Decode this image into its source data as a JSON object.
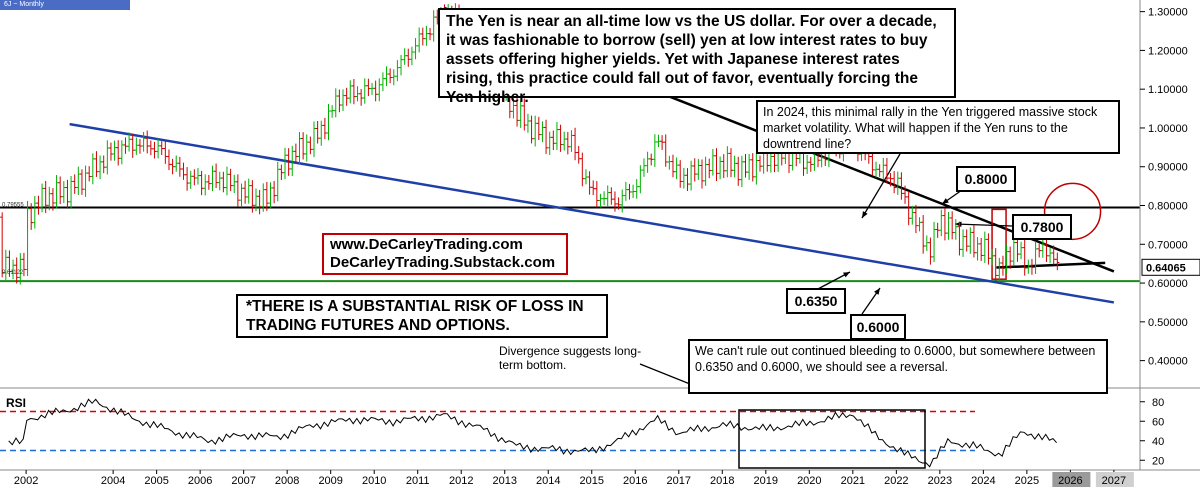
{
  "header": {
    "symbol": "6J ~ Monthly"
  },
  "annotations": {
    "main": "The Yen is near an all-time low vs the US dollar. For over a decade, it was fashionable to borrow (sell) yen at low interest rates to buy assets offering higher yields. Yet with Japanese interest rates rising, this practice could fall out of favor, eventually forcing the Yen higher.",
    "rally_2024": "In 2024, this minimal rally in the Yen triggered massive stock market volatility. What will happen if the Yen runs to the downtrend line?",
    "divergence": "Divergence suggests long-term bottom.",
    "bleed": "We can't rule out continued bleeding to 0.6000, but somewhere between 0.6350 and 0.6000, we should see a reversal.",
    "risk": "*THERE IS A SUBSTANTIAL RISK OF LOSS IN TRADING FUTURES AND OPTIONS.",
    "website1": "www.DeCarleyTrading.com",
    "website2": "DeCarleyTrading.Substack.com",
    "level_08": "0.8000",
    "level_078": "0.7800",
    "level_0635": "0.6350",
    "level_06": "0.6000"
  },
  "rsi_label": "RSI",
  "colors": {
    "up": "#00b000",
    "down": "#d00000",
    "downtrend": "#000000",
    "uptrend": "#1f3fa8",
    "support": "#1a8a1a",
    "resistance": "#000000",
    "rsi_upper": "#e00000",
    "rsi_lower": "#1f6fd0",
    "circle": "#c00000"
  },
  "chart_data": {
    "type": "candlestick",
    "title": "",
    "x_ticks": [
      "2002",
      "2004",
      "2005",
      "2006",
      "2007",
      "2008",
      "2009",
      "2010",
      "2011",
      "2012",
      "2013",
      "2014",
      "2015",
      "2016",
      "2017",
      "2018",
      "2019",
      "2020",
      "2021",
      "2022",
      "2023",
      "2024",
      "2025",
      "2026",
      "2027"
    ],
    "y_ticks": [
      "1.30000",
      "1.20000",
      "1.10000",
      "1.00000",
      "0.90000",
      "0.80000",
      "0.70000",
      "0.60000",
      "0.50000",
      "0.40000"
    ],
    "ylim": [
      0.35,
      1.33
    ],
    "price_labels": {
      "last": "0.64065",
      "low_mark": "0.61122",
      "mid_mark": "0.79555"
    },
    "anchors": [
      {
        "t": 2002.0,
        "v": 0.77
      },
      {
        "t": 2002.4,
        "v": 0.82
      },
      {
        "t": 2003.0,
        "v": 0.84
      },
      {
        "t": 2003.6,
        "v": 0.9
      },
      {
        "t": 2004.0,
        "v": 0.94
      },
      {
        "t": 2004.5,
        "v": 0.96
      },
      {
        "t": 2005.0,
        "v": 0.95
      },
      {
        "t": 2005.6,
        "v": 0.88
      },
      {
        "t": 2006.0,
        "v": 0.86
      },
      {
        "t": 2006.5,
        "v": 0.87
      },
      {
        "t": 2007.0,
        "v": 0.83
      },
      {
        "t": 2007.5,
        "v": 0.81
      },
      {
        "t": 2008.0,
        "v": 0.92
      },
      {
        "t": 2008.7,
        "v": 0.98
      },
      {
        "t": 2009.2,
        "v": 1.08
      },
      {
        "t": 2010.0,
        "v": 1.1
      },
      {
        "t": 2010.5,
        "v": 1.15
      },
      {
        "t": 2011.0,
        "v": 1.22
      },
      {
        "t": 2011.6,
        "v": 1.3
      },
      {
        "t": 2012.0,
        "v": 1.27
      },
      {
        "t": 2012.5,
        "v": 1.25
      },
      {
        "t": 2013.0,
        "v": 1.08
      },
      {
        "t": 2013.5,
        "v": 1.01
      },
      {
        "t": 2014.0,
        "v": 0.97
      },
      {
        "t": 2014.5,
        "v": 0.97
      },
      {
        "t": 2015.0,
        "v": 0.83
      },
      {
        "t": 2015.6,
        "v": 0.81
      },
      {
        "t": 2016.0,
        "v": 0.85
      },
      {
        "t": 2016.5,
        "v": 0.97
      },
      {
        "t": 2017.0,
        "v": 0.87
      },
      {
        "t": 2017.5,
        "v": 0.89
      },
      {
        "t": 2018.0,
        "v": 0.91
      },
      {
        "t": 2018.5,
        "v": 0.89
      },
      {
        "t": 2019.0,
        "v": 0.92
      },
      {
        "t": 2019.5,
        "v": 0.93
      },
      {
        "t": 2020.0,
        "v": 0.91
      },
      {
        "t": 2020.5,
        "v": 0.94
      },
      {
        "t": 2021.0,
        "v": 0.96
      },
      {
        "t": 2021.5,
        "v": 0.9
      },
      {
        "t": 2022.0,
        "v": 0.86
      },
      {
        "t": 2022.5,
        "v": 0.74
      },
      {
        "t": 2022.8,
        "v": 0.68
      },
      {
        "t": 2023.0,
        "v": 0.77
      },
      {
        "t": 2023.5,
        "v": 0.71
      },
      {
        "t": 2024.0,
        "v": 0.69
      },
      {
        "t": 2024.4,
        "v": 0.63
      },
      {
        "t": 2024.7,
        "v": 0.7
      },
      {
        "t": 2025.0,
        "v": 0.64
      },
      {
        "t": 2025.4,
        "v": 0.7
      },
      {
        "t": 2025.7,
        "v": 0.64
      }
    ],
    "rsi": {
      "ylim": [
        10,
        90
      ],
      "y_ticks": [
        "80",
        "60",
        "40",
        "20"
      ],
      "upper": 70,
      "lower": 30,
      "anchors": [
        {
          "t": 2002.0,
          "v": 62
        },
        {
          "t": 2003.0,
          "v": 72
        },
        {
          "t": 2003.6,
          "v": 80
        },
        {
          "t": 2004.5,
          "v": 62
        },
        {
          "t": 2005.5,
          "v": 48
        },
        {
          "t": 2006.2,
          "v": 40
        },
        {
          "t": 2007.0,
          "v": 46
        },
        {
          "t": 2007.8,
          "v": 44
        },
        {
          "t": 2008.6,
          "v": 56
        },
        {
          "t": 2009.5,
          "v": 62
        },
        {
          "t": 2010.5,
          "v": 60
        },
        {
          "t": 2011.6,
          "v": 66
        },
        {
          "t": 2012.5,
          "v": 52
        },
        {
          "t": 2013.3,
          "v": 34
        },
        {
          "t": 2014.2,
          "v": 31
        },
        {
          "t": 2015.0,
          "v": 29
        },
        {
          "t": 2015.6,
          "v": 40
        },
        {
          "t": 2016.5,
          "v": 62
        },
        {
          "t": 2017.0,
          "v": 48
        },
        {
          "t": 2018.0,
          "v": 56
        },
        {
          "t": 2019.0,
          "v": 52
        },
        {
          "t": 2020.0,
          "v": 58
        },
        {
          "t": 2021.0,
          "v": 68
        },
        {
          "t": 2021.5,
          "v": 46
        },
        {
          "t": 2022.2,
          "v": 26
        },
        {
          "t": 2022.8,
          "v": 16
        },
        {
          "t": 2023.2,
          "v": 40
        },
        {
          "t": 2023.8,
          "v": 34
        },
        {
          "t": 2024.4,
          "v": 26
        },
        {
          "t": 2024.9,
          "v": 50
        },
        {
          "t": 2025.3,
          "v": 44
        },
        {
          "t": 2025.7,
          "v": 38
        }
      ]
    },
    "lines": {
      "downtrend": {
        "from": {
          "t": 2011.6,
          "v": 1.31
        },
        "to": {
          "t": 2027.0,
          "v": 0.63
        }
      },
      "uptrend": {
        "from": {
          "t": 2003.0,
          "v": 1.01
        },
        "to": {
          "t": 2027.0,
          "v": 0.55
        }
      },
      "resistance": {
        "v": 0.795
      },
      "support": {
        "v": 0.605
      }
    }
  }
}
